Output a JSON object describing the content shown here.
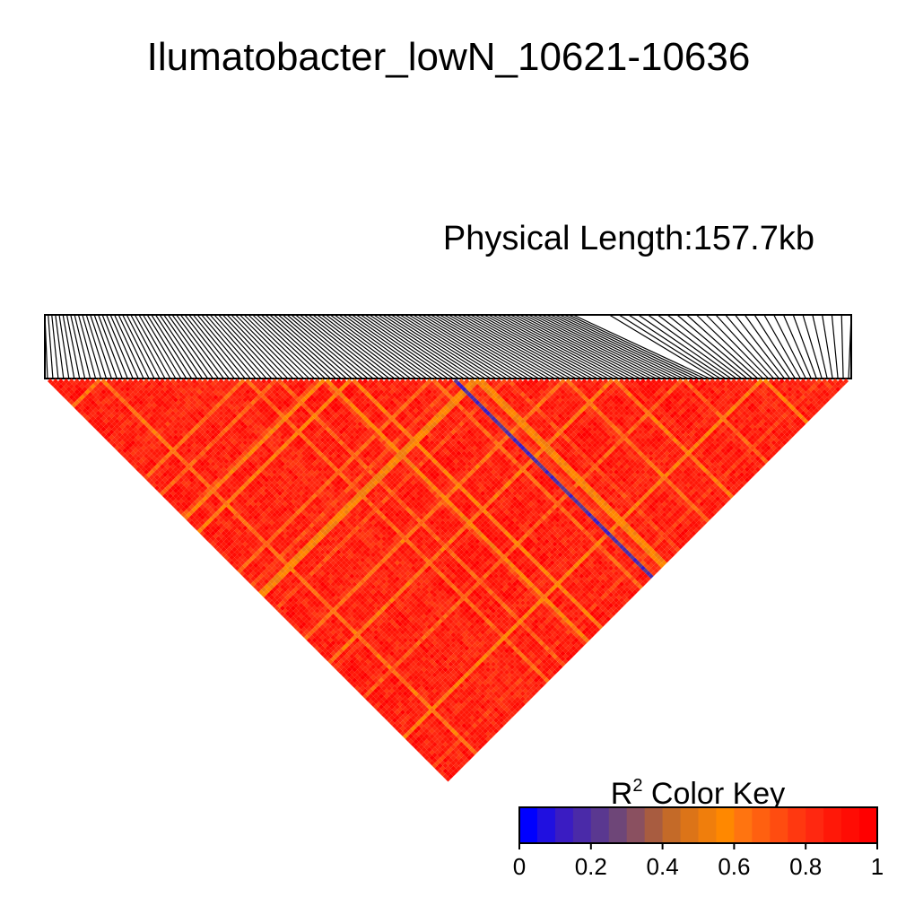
{
  "chart_data": {
    "type": "heatmap",
    "title": "Ilumatobacter_lowN_10621-10636",
    "subtitle": "Physical Length:157.7kb",
    "value_range": [
      0,
      1
    ],
    "color_key": {
      "title_main": "R",
      "title_sup": "2",
      "title_rest": " Color Key",
      "tick_labels": [
        "0",
        "0.2",
        "0.4",
        "0.6",
        "0.8",
        "1"
      ],
      "ticks": [
        0,
        0.2,
        0.4,
        0.6,
        0.8,
        1
      ],
      "colors": [
        "#0000ff",
        "#2010e0",
        "#3a1cc2",
        "#4a2aa8",
        "#5a3890",
        "#6e4678",
        "#8a5060",
        "#a85c40",
        "#c46a28",
        "#dc7418",
        "#f07e0c",
        "#ff8800",
        "#ff7410",
        "#ff6010",
        "#ff4c10",
        "#ff3810",
        "#ff2810",
        "#ff1808",
        "#ff0c04",
        "#ff0000"
      ]
    },
    "ld_summary": "mostly high R2 (0.8-1) with scattered moderate values; one low-R2 diagonal band",
    "n_markers": 151
  }
}
